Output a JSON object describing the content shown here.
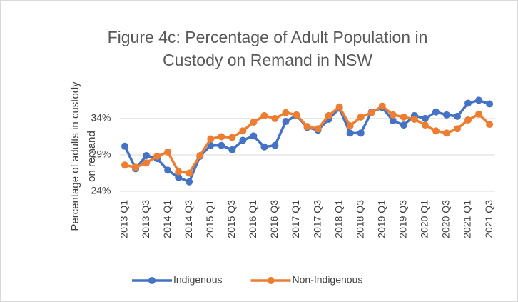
{
  "chart_data": {
    "type": "line",
    "title": "Figure 4c: Percentage of Adult Population in Custody on Remand in NSW",
    "y_label": "Percentage of adults in custody on remand",
    "categories": [
      "2013 Q1",
      null,
      "2013 Q3",
      null,
      "2014 Q1",
      null,
      "2014 Q3",
      null,
      "2015 Q1",
      null,
      "2015 Q3",
      null,
      "2016 Q1",
      null,
      "2016 Q3",
      null,
      "2017 Q1",
      null,
      "2017 Q3",
      null,
      "2018 Q1",
      null,
      "2018 Q3",
      null,
      "2019 Q1",
      null,
      "2019 Q3",
      null,
      "2020 Q1",
      null,
      "2020 Q3",
      null,
      "2021 Q1",
      null,
      "2021 Q3"
    ],
    "series": [
      {
        "name": "Indigenous",
        "color": "#4472c4",
        "values": [
          30.2,
          27.1,
          28.9,
          28.5,
          26.9,
          25.9,
          25.3,
          28.8,
          30.3,
          30.3,
          29.7,
          31.0,
          31.6,
          30.1,
          30.3,
          33.6,
          34.4,
          32.8,
          32.4,
          33.9,
          35.4,
          32.0,
          32.0,
          34.9,
          35.5,
          33.7,
          33.1,
          34.4,
          34.0,
          34.9,
          34.5,
          34.3,
          36.1,
          36.5,
          36.0
        ]
      },
      {
        "name": "Non-Indigenous",
        "color": "#ed7d31",
        "values": [
          27.6,
          27.3,
          27.9,
          28.8,
          29.4,
          26.7,
          26.5,
          28.9,
          31.2,
          31.5,
          31.4,
          32.3,
          33.5,
          34.4,
          34.0,
          34.8,
          34.5,
          32.9,
          32.6,
          34.4,
          35.6,
          33.0,
          34.2,
          34.8,
          35.7,
          34.5,
          34.2,
          33.9,
          33.1,
          32.3,
          32.0,
          32.6,
          33.8,
          34.6,
          33.2
        ]
      }
    ],
    "ylim": [
      24,
      38.5
    ],
    "yticks": [
      {
        "value": 24,
        "label": "24%"
      },
      {
        "value": 29,
        "label": "29%"
      },
      {
        "value": 34,
        "label": "34%"
      }
    ],
    "grid": true,
    "legend": "bottom"
  }
}
